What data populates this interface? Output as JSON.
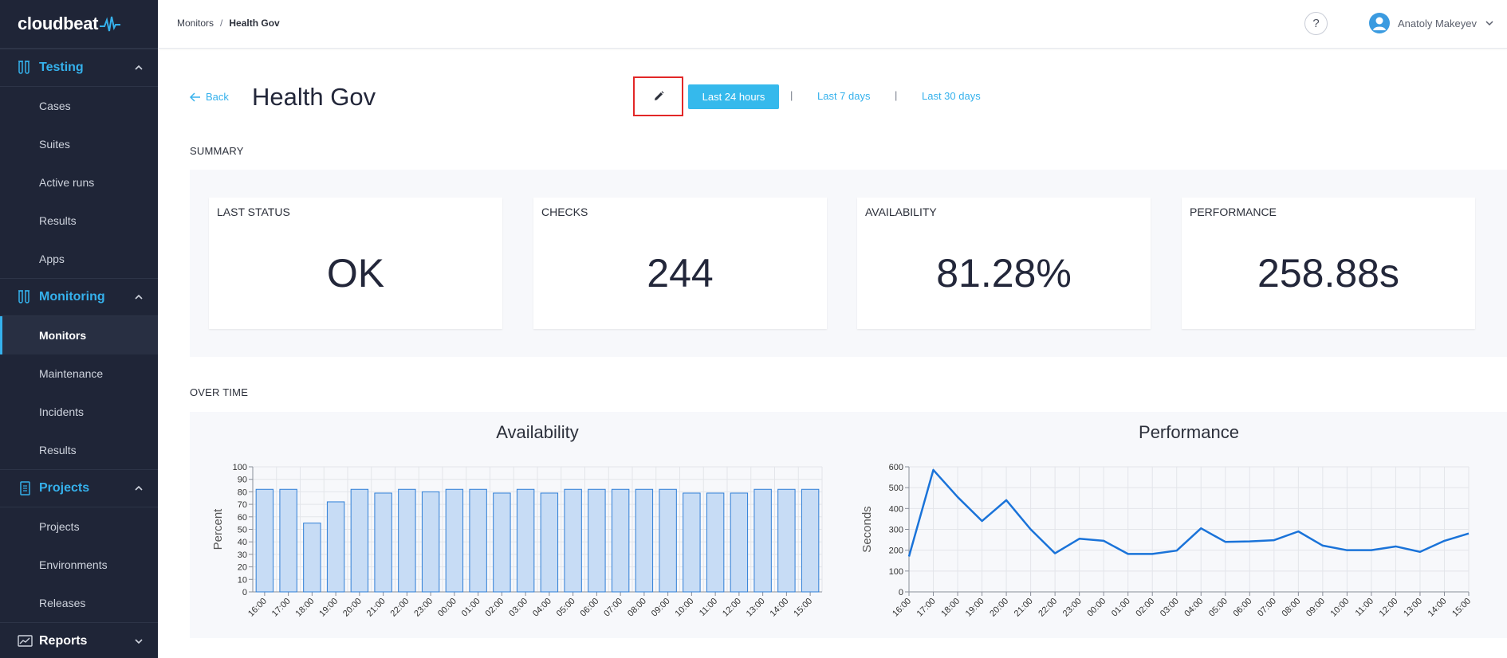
{
  "app": {
    "logo": "cloudbeat"
  },
  "sidebar": {
    "sections": [
      {
        "label": "Testing",
        "items": [
          "Cases",
          "Suites",
          "Active runs",
          "Results",
          "Apps"
        ]
      },
      {
        "label": "Monitoring",
        "items": [
          "Monitors",
          "Maintenance",
          "Incidents",
          "Results"
        ]
      },
      {
        "label": "Projects",
        "items": [
          "Projects",
          "Environments",
          "Releases"
        ]
      },
      {
        "label": "Reports",
        "items": []
      }
    ],
    "active_item": "Monitors"
  },
  "header": {
    "breadcrumb": [
      "Monitors",
      "Health Gov"
    ],
    "help": "?",
    "user_name": "Anatoly Makeyev"
  },
  "page": {
    "back_label": "Back",
    "title": "Health Gov",
    "ranges": [
      "Last 24 hours",
      "Last 7 days",
      "Last 30 days"
    ],
    "range_separator": "|",
    "active_range": "Last 24 hours"
  },
  "summary": {
    "label": "SUMMARY",
    "cards": [
      {
        "title": "LAST STATUS",
        "value": "OK"
      },
      {
        "title": "CHECKS",
        "value": "244"
      },
      {
        "title": "AVAILABILITY",
        "value": "81.28%"
      },
      {
        "title": "PERFORMANCE",
        "value": "258.88s"
      }
    ]
  },
  "over_time": {
    "label": "OVER TIME"
  },
  "colors": {
    "accent": "#35b1ec",
    "sidebar": "#1f2537",
    "bar_fill": "#c7dcf5",
    "bar_stroke": "#2e7ed6",
    "line": "#1a73d9",
    "highlight": "#e22727"
  },
  "chart_data": [
    {
      "type": "bar",
      "title": "Availability",
      "ylabel": "Percent",
      "xlabel": "",
      "ylim": [
        0,
        100
      ],
      "yticks": [
        0,
        10,
        20,
        30,
        40,
        50,
        60,
        70,
        80,
        90,
        100
      ],
      "categories": [
        "16:00",
        "17:00",
        "18:00",
        "19:00",
        "20:00",
        "21:00",
        "22:00",
        "23:00",
        "00:00",
        "01:00",
        "02:00",
        "03:00",
        "04:00",
        "05:00",
        "06:00",
        "07:00",
        "08:00",
        "09:00",
        "10:00",
        "11:00",
        "12:00",
        "13:00",
        "14:00",
        "15:00"
      ],
      "values": [
        82,
        82,
        55,
        72,
        82,
        79,
        82,
        80,
        82,
        82,
        79,
        82,
        79,
        82,
        82,
        82,
        82,
        82,
        79,
        79,
        79,
        82,
        82,
        82
      ],
      "grid": true
    },
    {
      "type": "line",
      "title": "Performance",
      "ylabel": "Seconds",
      "xlabel": "",
      "ylim": [
        0,
        600
      ],
      "yticks": [
        0,
        100,
        200,
        300,
        400,
        500,
        600
      ],
      "categories": [
        "16:00",
        "17:00",
        "18:00",
        "19:00",
        "20:00",
        "21:00",
        "22:00",
        "23:00",
        "00:00",
        "01:00",
        "02:00",
        "03:00",
        "04:00",
        "05:00",
        "06:00",
        "07:00",
        "08:00",
        "09:00",
        "10:00",
        "11:00",
        "12:00",
        "13:00",
        "14:00",
        "15:00"
      ],
      "values": [
        170,
        585,
        455,
        340,
        440,
        300,
        185,
        255,
        245,
        182,
        182,
        198,
        305,
        240,
        242,
        248,
        290,
        222,
        200,
        200,
        218,
        192,
        245,
        280
      ],
      "grid": true
    }
  ]
}
